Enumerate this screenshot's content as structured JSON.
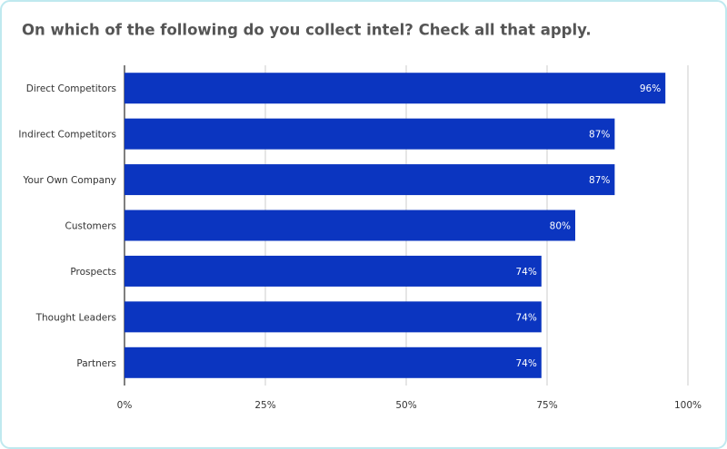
{
  "chart_data": {
    "type": "bar",
    "orientation": "horizontal",
    "title": "On which of the following do you collect intel? Check all that apply.",
    "categories": [
      "Direct Competitors",
      "Indirect Competitors",
      "Your Own Company",
      "Customers",
      "Prospects",
      "Thought Leaders",
      "Partners"
    ],
    "values": [
      96,
      87,
      87,
      80,
      74,
      74,
      74
    ],
    "value_labels": [
      "96%",
      "87%",
      "87%",
      "80%",
      "74%",
      "74%",
      "74%"
    ],
    "color": "#0b35c0",
    "xlim": [
      0,
      100
    ],
    "xticks": [
      {
        "value": 0,
        "label": "0%"
      },
      {
        "value": 25,
        "label": "25%"
      },
      {
        "value": 50,
        "label": "50%"
      },
      {
        "value": 75,
        "label": "75%"
      },
      {
        "value": 100,
        "label": "100%"
      }
    ],
    "grid": true
  }
}
